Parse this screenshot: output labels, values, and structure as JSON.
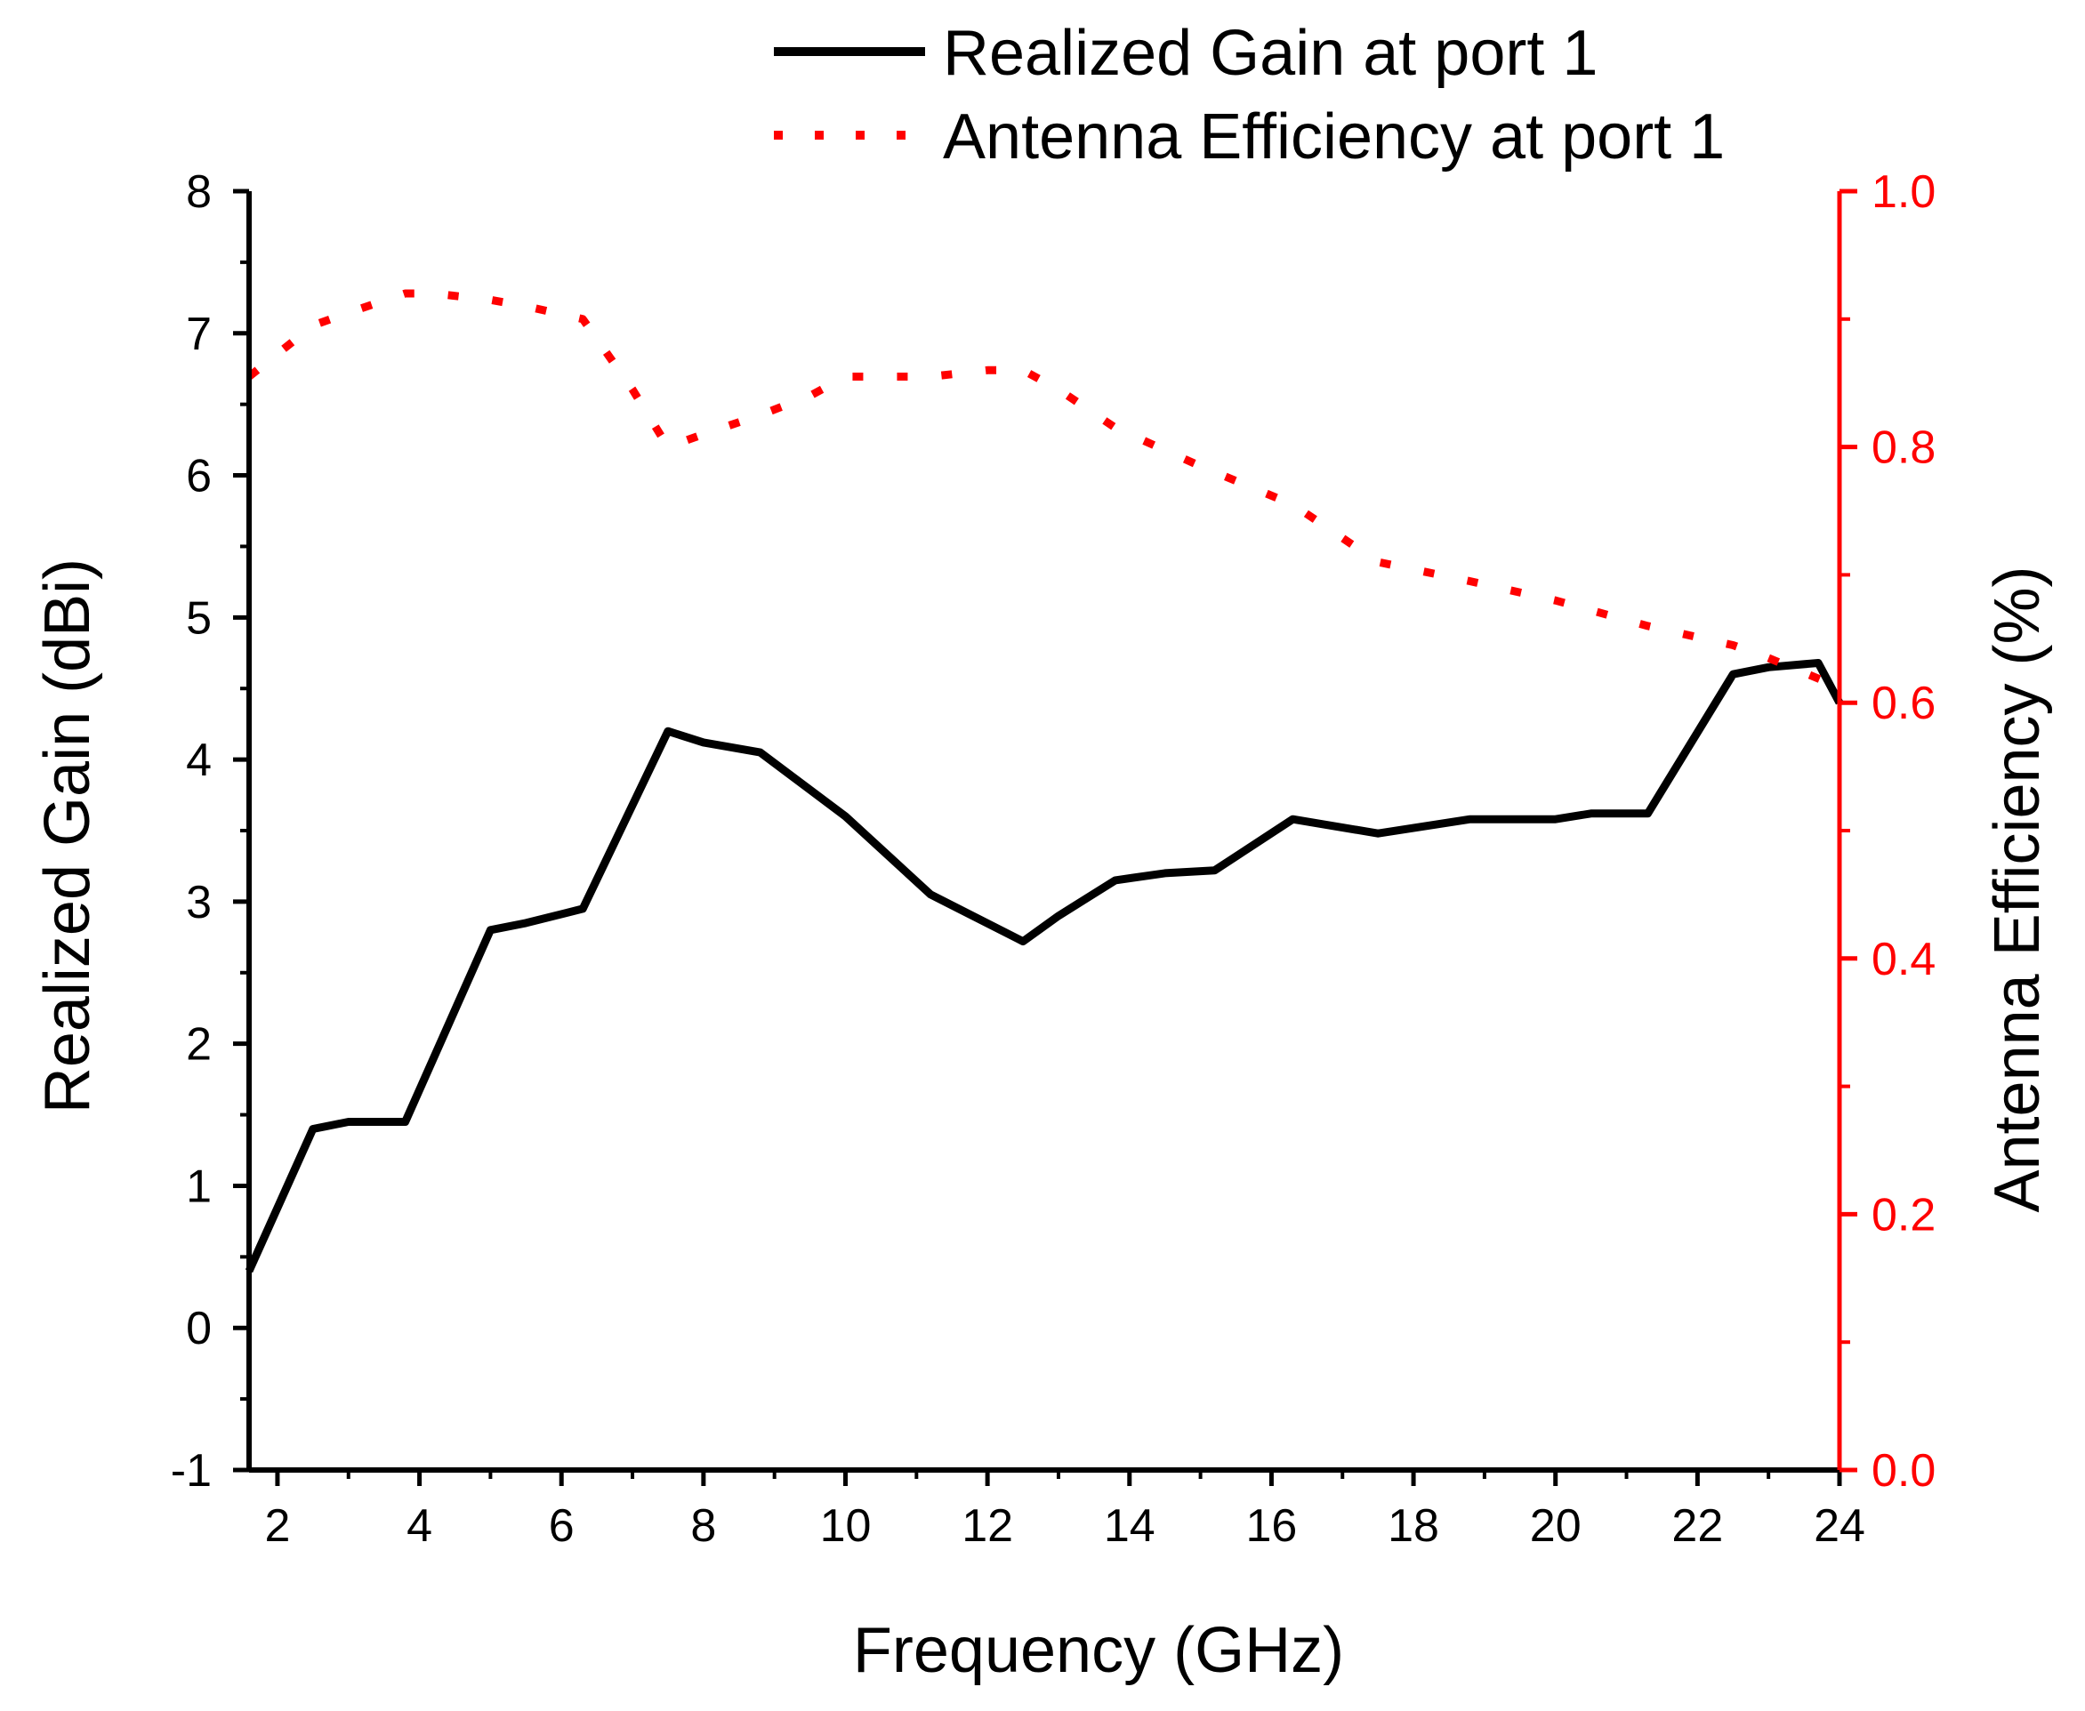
{
  "chart_data": {
    "type": "line",
    "title": "",
    "xlabel": "Frequency (GHz)",
    "ylabel": "Realized Gain (dBi)",
    "y2label": "Antenna Efficiency (%)",
    "xlim": [
      1.6,
      24
    ],
    "ylim": [
      -1,
      8
    ],
    "y2lim": [
      0,
      1.0
    ],
    "x_ticks": [
      2,
      4,
      6,
      8,
      10,
      12,
      14,
      16,
      18,
      20,
      22,
      24
    ],
    "y_ticks": [
      -1,
      0,
      1,
      2,
      3,
      4,
      5,
      6,
      7,
      8
    ],
    "y2_ticks": [
      "0.0",
      "0.2",
      "0.4",
      "0.6",
      "0.8",
      "1.0"
    ],
    "legend_position": "top",
    "series": [
      {
        "name": "Realized Gain at port 1",
        "axis": "left",
        "color": "#000000",
        "style": "solid",
        "x": [
          1.6,
          2.5,
          3.0,
          3.8,
          5.0,
          5.5,
          6.3,
          7.5,
          8.0,
          8.8,
          10.0,
          11.2,
          12.5,
          13.0,
          13.8,
          14.5,
          15.2,
          16.3,
          17.5,
          18.8,
          20.0,
          20.5,
          21.3,
          22.5,
          23.0,
          23.7,
          24.0
        ],
        "values": [
          0.4,
          1.4,
          1.45,
          1.45,
          2.8,
          2.85,
          2.95,
          4.2,
          4.12,
          4.05,
          3.6,
          3.05,
          2.72,
          2.9,
          3.15,
          3.2,
          3.22,
          3.58,
          3.48,
          3.58,
          3.58,
          3.62,
          3.62,
          4.6,
          4.65,
          4.68,
          4.4
        ]
      },
      {
        "name": "Antenna Efficiency at port 1",
        "axis": "right",
        "color": "#ff0000",
        "style": "dotted",
        "x": [
          1.6,
          2.5,
          3.0,
          3.8,
          4.2,
          5.0,
          5.5,
          6.3,
          7.0,
          7.5,
          8.0,
          8.8,
          9.5,
          10.0,
          11.2,
          12.0,
          12.5,
          13.0,
          13.8,
          15.0,
          16.3,
          17.5,
          18.8,
          20.0,
          21.3,
          22.5,
          23.0,
          24.0
        ],
        "values": [
          0.855,
          0.895,
          0.905,
          0.92,
          0.92,
          0.915,
          0.91,
          0.9,
          0.845,
          0.8,
          0.81,
          0.825,
          0.84,
          0.855,
          0.855,
          0.86,
          0.86,
          0.845,
          0.815,
          0.785,
          0.755,
          0.71,
          0.695,
          0.68,
          0.66,
          0.645,
          0.635,
          0.612
        ]
      }
    ]
  }
}
